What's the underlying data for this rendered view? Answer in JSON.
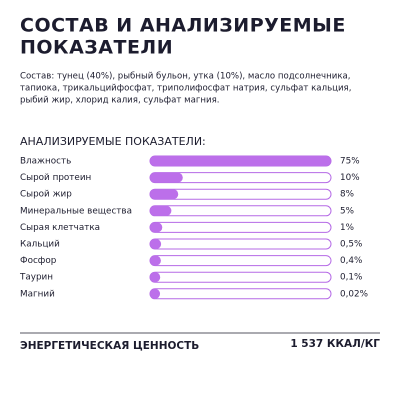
{
  "header": {
    "title": [
      "СОСТАВ И АНАЛИЗИРУЕМЫЕ",
      "ПОКАЗАТЕЛИ"
    ]
  },
  "composition": [
    "Состав: тунец (40%), рыбный бульон, утка (10%), масло подсолнечника,",
    "тапиока, трикальцийфосфат, триполифосфат натрия, сульфат кальция,",
    "рыбий жир, хлорид калия, сульфат магния."
  ],
  "indicators": {
    "title": "АНАЛИЗИРУЕМЫЕ ПОКАЗАТЕЛИ:",
    "items": [
      {
        "name": "Влажность",
        "value": 75,
        "label": "75%"
      },
      {
        "name": "Сырой протеин",
        "value": 10,
        "label": "10%"
      },
      {
        "name": "Сырой жир",
        "value": 8,
        "label": "8%"
      },
      {
        "name": "Минеральные вещества",
        "value": 5,
        "label": "5%"
      },
      {
        "name": "Сырая клетчатка",
        "value": 1,
        "label": "1%"
      },
      {
        "name": "Кальций",
        "value": 0.5,
        "label": "0,5%"
      },
      {
        "name": "Фосфор",
        "value": 0.4,
        "label": "0,4%"
      },
      {
        "name": "Таурин",
        "value": 0.1,
        "label": "0,1%"
      },
      {
        "name": "Магний",
        "value": 0.02,
        "label": "0,02%"
      }
    ]
  },
  "energy": {
    "label": "ЭНЕРГЕТИЧЕСКАЯ ЦЕННОСТЬ",
    "value": "1 537 ККАЛ/КГ"
  }
}
